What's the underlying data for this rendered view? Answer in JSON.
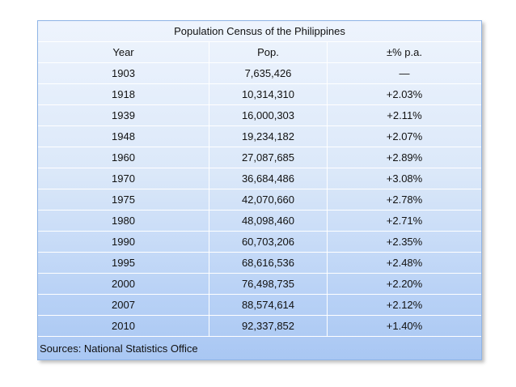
{
  "table": {
    "title": "Population Census of the Philippines",
    "headers": {
      "year": "Year",
      "pop": "Pop.",
      "pct": "±% p.a."
    },
    "rows": [
      {
        "year": "1903",
        "pop": "7,635,426",
        "pct": "—"
      },
      {
        "year": "1918",
        "pop": "10,314,310",
        "pct": "+2.03%"
      },
      {
        "year": "1939",
        "pop": "16,000,303",
        "pct": "+2.11%"
      },
      {
        "year": "1948",
        "pop": "19,234,182",
        "pct": "+2.07%"
      },
      {
        "year": "1960",
        "pop": "27,087,685",
        "pct": "+2.89%"
      },
      {
        "year": "1970",
        "pop": "36,684,486",
        "pct": "+3.08%"
      },
      {
        "year": "1975",
        "pop": "42,070,660",
        "pct": "+2.78%"
      },
      {
        "year": "1980",
        "pop": "48,098,460",
        "pct": "+2.71%"
      },
      {
        "year": "1990",
        "pop": "60,703,206",
        "pct": "+2.35%"
      },
      {
        "year": "1995",
        "pop": "68,616,536",
        "pct": "+2.48%"
      },
      {
        "year": "2000",
        "pop": "76,498,735",
        "pct": "+2.20%"
      },
      {
        "year": "2007",
        "pop": "88,574,614",
        "pct": "+2.12%"
      },
      {
        "year": "2010",
        "pop": "92,337,852",
        "pct": "+1.40%"
      }
    ],
    "source": "Sources: National Statistics Office"
  },
  "colors": {
    "accent_border": "#8fb4e6",
    "gradient_top": "#eef4fd",
    "gradient_bottom": "#a9c7f3"
  }
}
